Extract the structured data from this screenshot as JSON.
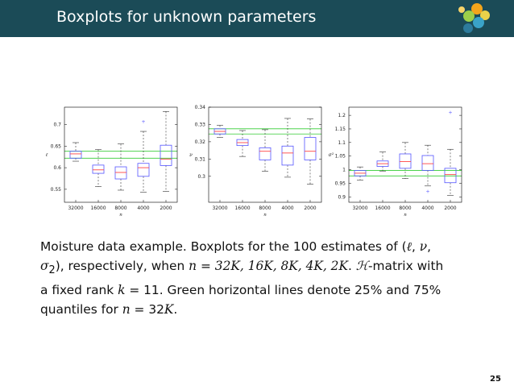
{
  "slide": {
    "title": "Boxplots for unknown parameters",
    "page_number": "25",
    "caption": {
      "line1_a": "Moisture data example. Boxplots for the 100 estimates of (",
      "ell": "ℓ",
      "sep1": ", ",
      "nu": "ν",
      "sep2": ",",
      "line2_a": "σ",
      "sigma_sub": "2",
      "line2_b": "), respectively, when ",
      "n_var": "n",
      "eq": " = ",
      "n_values": "32K, 16K, 8K, 4K, 2K",
      "line2_c": ". ",
      "h_symbol": "ℋ",
      "line2_d": "-matrix with",
      "line3_a": "a fixed rank ",
      "k_var": "k",
      "k_eq": " = 11",
      "line3_b": ". Green horizontal lines denote 25% and 75%",
      "line4_a": "quantiles for ",
      "n_var2": "n",
      "line4_b": " = 32",
      "k_upper": "K",
      "line4_c": "."
    }
  },
  "colors": {
    "titlebar": "#1b4b57",
    "box": "#5555ff",
    "median": "#ff4444",
    "whisker": "#333333",
    "quantile_lines": "#33cc33"
  },
  "chart_data": [
    {
      "type": "boxplot",
      "ylabel": "ℓ",
      "xlabel": "n",
      "categories": [
        "32000",
        "16000",
        "8000",
        "4000",
        "2000"
      ],
      "ylim": [
        0.52,
        0.74
      ],
      "yticks": [
        0.55,
        0.6,
        0.65,
        0.7
      ],
      "ytick_labels": [
        "0.55",
        "0.6",
        "0.65",
        "0.7"
      ],
      "green_lines": [
        0.622,
        0.638
      ],
      "boxes": [
        {
          "whisker_low": 0.615,
          "q1": 0.622,
          "median": 0.632,
          "q3": 0.638,
          "whisker_high": 0.658
        },
        {
          "whisker_low": 0.556,
          "q1": 0.587,
          "median": 0.595,
          "q3": 0.606,
          "whisker_high": 0.642
        },
        {
          "whisker_low": 0.548,
          "q1": 0.574,
          "median": 0.589,
          "q3": 0.602,
          "whisker_high": 0.655
        },
        {
          "whisker_low": 0.543,
          "q1": 0.58,
          "median": 0.6,
          "q3": 0.61,
          "whisker_high": 0.684
        },
        {
          "whisker_low": 0.545,
          "q1": 0.605,
          "median": 0.62,
          "q3": 0.652,
          "whisker_high": 0.73
        }
      ],
      "outliers": [
        {
          "box": 3,
          "value": 0.706
        }
      ]
    },
    {
      "type": "boxplot",
      "ylabel": "ν",
      "xlabel": "n",
      "categories": [
        "32000",
        "16000",
        "8000",
        "4000",
        "2000"
      ],
      "ylim": [
        0.285,
        0.34
      ],
      "yticks": [
        0.3,
        0.31,
        0.32,
        0.33,
        0.34
      ],
      "ytick_labels": [
        "0.3",
        "0.31",
        "0.32",
        "0.33",
        "0.34"
      ],
      "green_lines": [
        0.3245,
        0.3275
      ],
      "boxes": [
        {
          "whisker_low": 0.3225,
          "q1": 0.3245,
          "median": 0.326,
          "q3": 0.3275,
          "whisker_high": 0.3295
        },
        {
          "whisker_low": 0.3115,
          "q1": 0.3178,
          "median": 0.3195,
          "q3": 0.3213,
          "whisker_high": 0.3265
        },
        {
          "whisker_low": 0.303,
          "q1": 0.3095,
          "median": 0.3145,
          "q3": 0.3165,
          "whisker_high": 0.327
        },
        {
          "whisker_low": 0.2995,
          "q1": 0.3065,
          "median": 0.3135,
          "q3": 0.3175,
          "whisker_high": 0.3335
        },
        {
          "whisker_low": 0.2955,
          "q1": 0.3095,
          "median": 0.3145,
          "q3": 0.3225,
          "whisker_high": 0.3332
        }
      ],
      "outliers": []
    },
    {
      "type": "boxplot",
      "ylabel": "σ²",
      "xlabel": "n",
      "categories": [
        "32000",
        "16000",
        "8000",
        "4000",
        "2000"
      ],
      "ylim": [
        0.88,
        1.23
      ],
      "yticks": [
        0.9,
        0.95,
        1.0,
        1.05,
        1.1,
        1.15,
        1.2
      ],
      "ytick_labels": [
        "0.9",
        "0.95",
        "1",
        "1.05",
        "1.1",
        "1.15",
        "1.2"
      ],
      "green_lines": [
        0.977,
        0.997
      ],
      "boxes": [
        {
          "whisker_low": 0.962,
          "q1": 0.977,
          "median": 0.987,
          "q3": 0.997,
          "whisker_high": 1.01
        },
        {
          "whisker_low": 0.995,
          "q1": 1.012,
          "median": 1.022,
          "q3": 1.032,
          "whisker_high": 1.065
        },
        {
          "whisker_low": 0.967,
          "q1": 1.005,
          "median": 1.03,
          "q3": 1.058,
          "whisker_high": 1.1
        },
        {
          "whisker_low": 0.94,
          "q1": 0.997,
          "median": 1.022,
          "q3": 1.052,
          "whisker_high": 1.09
        },
        {
          "whisker_low": 0.905,
          "q1": 0.952,
          "median": 0.982,
          "q3": 1.005,
          "whisker_high": 1.075
        }
      ],
      "outliers": [
        {
          "box": 3,
          "value": 0.92
        },
        {
          "box": 4,
          "value": 1.21
        }
      ]
    }
  ]
}
